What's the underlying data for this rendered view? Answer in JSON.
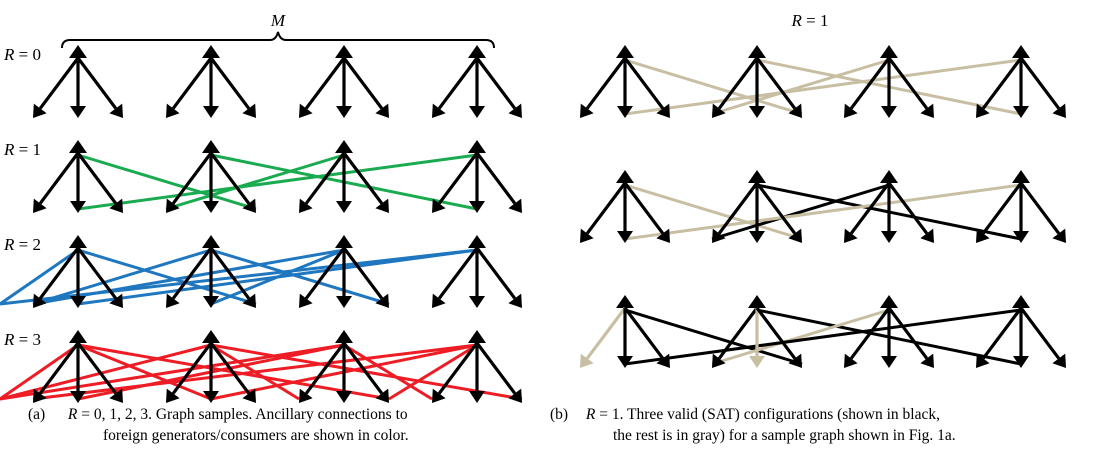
{
  "panel_a": {
    "brace_label": "M",
    "rows": [
      {
        "label_var": "R",
        "label_eq": " = 0",
        "links": [],
        "color": "#000000"
      },
      {
        "label_var": "R",
        "label_eq": " = 1",
        "links": [
          [
            0,
            2
          ],
          [
            1,
            1
          ],
          [
            2,
            0
          ],
          [
            3,
            1
          ]
        ],
        "color": "#1aab50"
      },
      {
        "label_var": "R",
        "label_eq": " = 2",
        "links": [
          [
            0,
            2
          ],
          [
            0,
            3
          ],
          [
            1,
            0
          ],
          [
            1,
            2
          ],
          [
            2,
            0
          ],
          [
            2,
            1
          ],
          [
            3,
            1
          ],
          [
            3,
            3
          ]
        ],
        "color": "#1f77c0"
      },
      {
        "label_var": "R",
        "label_eq": " = 3",
        "links": [
          [
            0,
            1
          ],
          [
            0,
            2
          ],
          [
            0,
            3
          ],
          [
            1,
            0
          ],
          [
            1,
            2
          ],
          [
            1,
            3
          ],
          [
            2,
            0
          ],
          [
            2,
            1
          ],
          [
            2,
            3
          ],
          [
            3,
            0
          ],
          [
            3,
            1
          ],
          [
            3,
            2
          ]
        ],
        "color": "#ee1c24"
      }
    ]
  },
  "panel_b": {
    "title_var": "R",
    "title_eq": " = 1",
    "gray": "#c8bfa3",
    "configs": [
      {
        "links": [
          [
            0,
            2
          ],
          [
            1,
            1
          ],
          [
            2,
            0
          ],
          [
            3,
            1
          ]
        ],
        "active_links": [],
        "active_legs": []
      },
      {
        "links": [
          [
            0,
            2
          ],
          [
            1,
            1
          ],
          [
            2,
            0
          ],
          [
            3,
            1
          ]
        ],
        "active_links": [
          [
            1,
            1
          ],
          [
            2,
            0
          ]
        ],
        "active_legs": [
          [
            0,
            0
          ],
          [
            0,
            1
          ],
          [
            0,
            2
          ],
          [
            1,
            0
          ],
          [
            1,
            1
          ],
          [
            1,
            2
          ],
          [
            2,
            0
          ],
          [
            2,
            1
          ],
          [
            2,
            2
          ],
          [
            3,
            0
          ],
          [
            3,
            1
          ],
          [
            3,
            2
          ]
        ]
      },
      {
        "links": [
          [
            0,
            2
          ],
          [
            1,
            1
          ],
          [
            2,
            0
          ],
          [
            3,
            1
          ]
        ],
        "active_links": [
          [
            0,
            2
          ],
          [
            1,
            1
          ],
          [
            3,
            1
          ]
        ],
        "active_legs": [
          [
            0,
            1
          ],
          [
            0,
            2
          ],
          [
            1,
            0
          ],
          [
            1,
            2
          ],
          [
            2,
            0
          ],
          [
            2,
            1
          ],
          [
            2,
            2
          ],
          [
            3,
            0
          ],
          [
            3,
            1
          ],
          [
            3,
            2
          ]
        ]
      }
    ]
  },
  "captions": {
    "a": {
      "tag": "(a)",
      "var": "R",
      "text1": " = 0, 1, 2, 3. Graph samples. Ancillary connections to",
      "text2": "foreign generators/consumers are shown in color."
    },
    "b": {
      "tag": "(b)",
      "var": "R",
      "text1": " = 1. Three valid (SAT) configurations (shown in black,",
      "text2": "the rest is in gray) for a sample graph shown in Fig. 1a."
    }
  }
}
